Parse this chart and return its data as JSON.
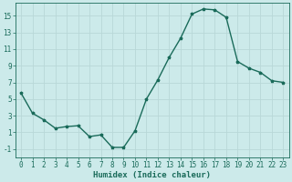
{
  "x": [
    0,
    1,
    2,
    3,
    4,
    5,
    6,
    7,
    8,
    9,
    10,
    11,
    12,
    13,
    14,
    15,
    16,
    17,
    18,
    19,
    20,
    21,
    22,
    23
  ],
  "y": [
    5.7,
    3.3,
    2.5,
    1.5,
    1.7,
    1.8,
    0.5,
    0.7,
    -0.8,
    -0.8,
    1.2,
    5.0,
    7.3,
    10.0,
    12.3,
    15.2,
    15.8,
    15.7,
    14.8,
    9.5,
    8.7,
    8.2,
    7.2,
    7.0
  ],
  "line_color": "#1a6b5a",
  "marker": "*",
  "marker_size": 2.5,
  "bg_color": "#cceaea",
  "grid_color": "#b8d8d8",
  "xlabel": "Humidex (Indice chaleur)",
  "ylim": [
    -2,
    16.5
  ],
  "xlim": [
    -0.5,
    23.5
  ],
  "yticks": [
    -1,
    1,
    3,
    5,
    7,
    9,
    11,
    13,
    15
  ],
  "xticks": [
    0,
    1,
    2,
    3,
    4,
    5,
    6,
    7,
    8,
    9,
    10,
    11,
    12,
    13,
    14,
    15,
    16,
    17,
    18,
    19,
    20,
    21,
    22,
    23
  ],
  "tick_fontsize": 5.5,
  "label_fontsize": 6.5,
  "line_width": 1.0
}
